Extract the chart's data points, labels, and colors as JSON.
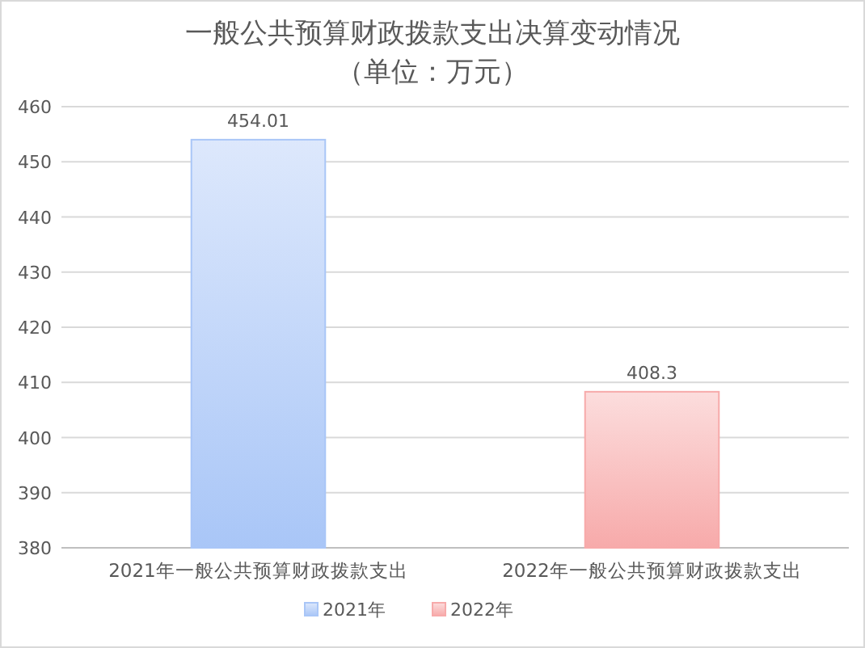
{
  "chart_data": {
    "type": "bar",
    "title": "一般公共预算财政拨款支出决算变动情况",
    "subtitle": "（单位：万元）",
    "categories": [
      "2021年一般公共预算财政拨款支出",
      "2022年一般公共预算财政拨款支出"
    ],
    "series": [
      {
        "name": "2021年",
        "color": "#a9c6f7",
        "values": [
          454.01,
          null
        ]
      },
      {
        "name": "2022年",
        "color": "#f7aaaa",
        "values": [
          null,
          408.3
        ]
      }
    ],
    "ylim": [
      380,
      460
    ],
    "yticks": [
      380,
      390,
      400,
      410,
      420,
      430,
      440,
      450,
      460
    ],
    "grid": "y",
    "legend": "bottom",
    "data_labels": true
  }
}
